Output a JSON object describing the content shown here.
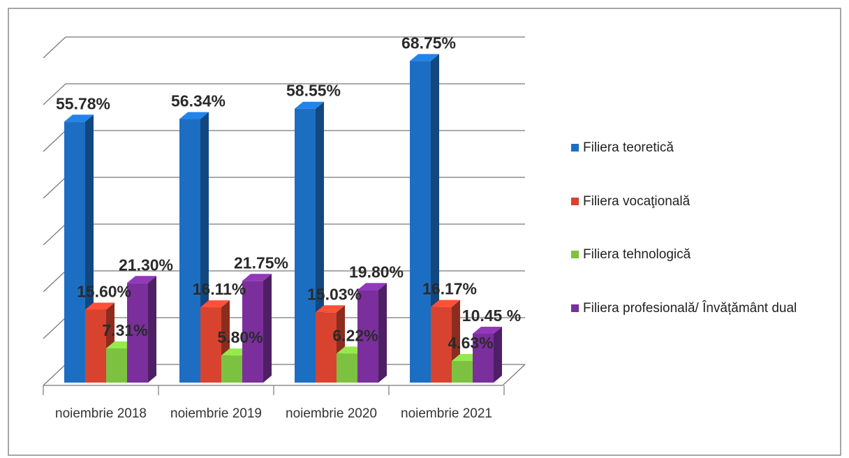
{
  "chart_data": {
    "type": "bar3d",
    "categories": [
      "noiembrie 2018",
      "noiembrie 2019",
      "noiembrie 2020",
      "noiembrie 2021"
    ],
    "series": [
      {
        "name": "Filiera teoretică",
        "color": "#1c6ec3",
        "values": [
          55.78,
          56.34,
          58.55,
          68.75
        ],
        "value_labels": [
          "55.78%",
          "56.34%",
          "58.55%",
          "68.75%"
        ]
      },
      {
        "name": "Filiera vocaţională",
        "color": "#d8432f",
        "values": [
          15.6,
          16.11,
          15.03,
          16.17
        ],
        "value_labels": [
          "15.60%",
          "16.11%",
          "15.03%",
          "16.17%"
        ]
      },
      {
        "name": "Filiera tehnologică",
        "color": "#7cc240",
        "values": [
          7.31,
          5.8,
          6.22,
          4.63
        ],
        "value_labels": [
          "7.31%",
          "5.80%",
          "6.22%",
          "4.63%"
        ]
      },
      {
        "name": "Filiera profesională/ Învățământ dual",
        "color": "#7a2f9c",
        "values": [
          21.3,
          21.75,
          19.8,
          10.45
        ],
        "value_labels": [
          "21.30%",
          "21.75%",
          "19.80%",
          "10.45 %"
        ]
      }
    ],
    "ylim": [
      0,
      70
    ],
    "yticks": [
      0,
      10,
      20,
      30,
      40,
      50,
      60,
      70
    ],
    "grid": true,
    "legend": "right"
  }
}
